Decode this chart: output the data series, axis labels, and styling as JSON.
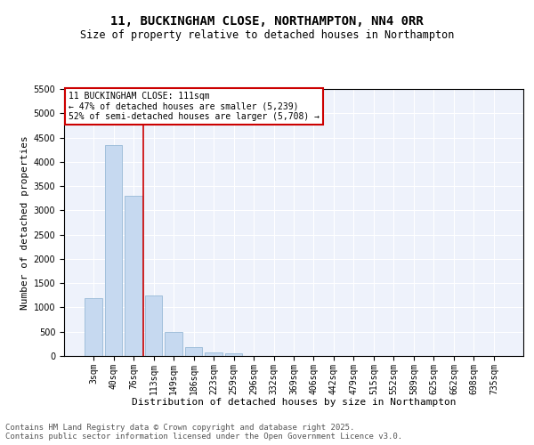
{
  "title_line1": "11, BUCKINGHAM CLOSE, NORTHAMPTON, NN4 0RR",
  "title_line2": "Size of property relative to detached houses in Northampton",
  "xlabel": "Distribution of detached houses by size in Northampton",
  "ylabel": "Number of detached properties",
  "categories": [
    "3sqm",
    "40sqm",
    "76sqm",
    "113sqm",
    "149sqm",
    "186sqm",
    "223sqm",
    "259sqm",
    "296sqm",
    "332sqm",
    "369sqm",
    "406sqm",
    "442sqm",
    "479sqm",
    "515sqm",
    "552sqm",
    "589sqm",
    "625sqm",
    "662sqm",
    "698sqm",
    "735sqm"
  ],
  "bar_values": [
    1200,
    4350,
    3300,
    1250,
    490,
    175,
    80,
    50,
    0,
    0,
    0,
    0,
    0,
    0,
    0,
    0,
    0,
    0,
    0,
    0,
    0
  ],
  "bar_color": "#c6d9f0",
  "bar_edge_color": "#8ab0d0",
  "vline_x_index": 2.5,
  "vline_color": "#cc0000",
  "annotation_text": "11 BUCKINGHAM CLOSE: 111sqm\n← 47% of detached houses are smaller (5,239)\n52% of semi-detached houses are larger (5,708) →",
  "annotation_box_color": "#ffffff",
  "annotation_box_edge_color": "#cc0000",
  "ylim": [
    0,
    5500
  ],
  "yticks": [
    0,
    500,
    1000,
    1500,
    2000,
    2500,
    3000,
    3500,
    4000,
    4500,
    5000,
    5500
  ],
  "background_color": "#eef2fb",
  "footer_line1": "Contains HM Land Registry data © Crown copyright and database right 2025.",
  "footer_line2": "Contains public sector information licensed under the Open Government Licence v3.0.",
  "title_fontsize": 10,
  "subtitle_fontsize": 8.5,
  "axis_label_fontsize": 8,
  "tick_fontsize": 7,
  "annotation_fontsize": 7,
  "footer_fontsize": 6.5
}
